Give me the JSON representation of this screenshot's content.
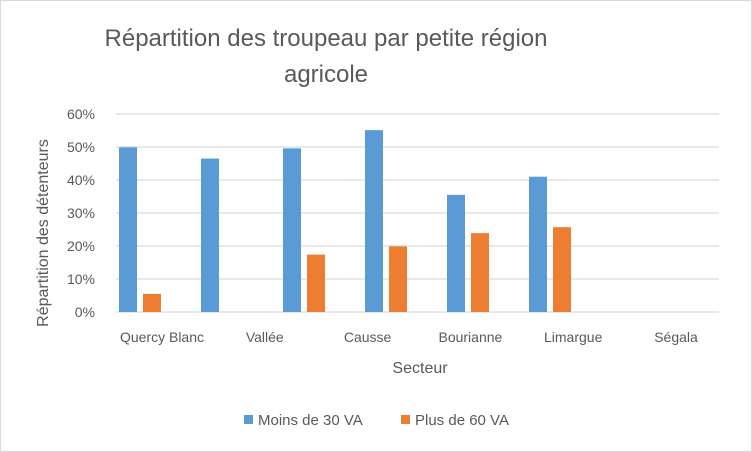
{
  "chart_data": {
    "type": "bar",
    "title": "Répartition des troupeau par petite région agricole",
    "xlabel": "Secteur",
    "ylabel": "Répartition des détenteurs",
    "categories": [
      "Quercy Blanc",
      "Vallée",
      "Causse",
      "Bourianne",
      "Limargue",
      "Ségala"
    ],
    "series": [
      {
        "name": "Moins de 30 VA",
        "color": "#5b9bd5",
        "values": [
          49.9,
          46.5,
          49.6,
          55.1,
          35.5,
          41.0
        ]
      },
      {
        "name": "Plus de 60 VA",
        "color": "#ed7d31",
        "values": [
          5.5,
          0,
          17.4,
          19.9,
          23.9,
          25.7
        ]
      }
    ],
    "ylim": [
      0,
      60
    ],
    "yticks": [
      "0%",
      "10%",
      "20%",
      "30%",
      "40%",
      "50%",
      "60%"
    ],
    "grid": true,
    "legend": "bottom"
  }
}
